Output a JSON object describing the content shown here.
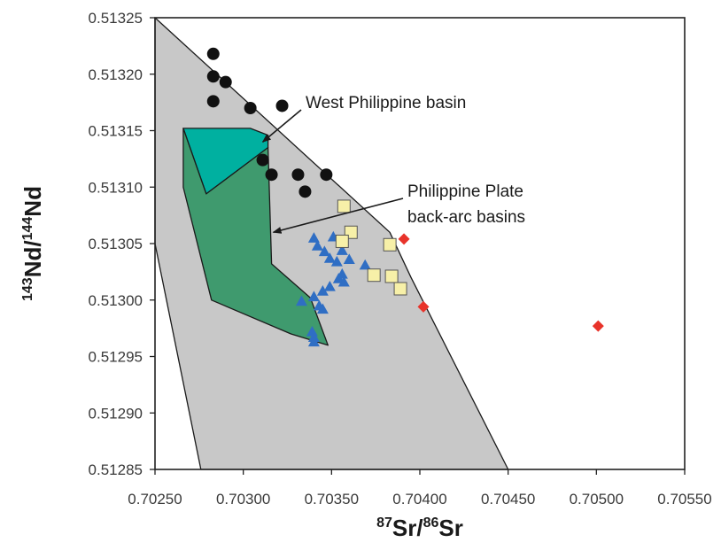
{
  "chart_data": {
    "type": "scatter",
    "xlabel": {
      "sup1": "87",
      "base1": "Sr/",
      "sup2": "86",
      "base2": "Sr"
    },
    "ylabel": {
      "sup1": "143",
      "base1": "Nd/",
      "sup2": "144",
      "base2": "Nd"
    },
    "xlim": [
      0.7025,
      0.7055
    ],
    "ylim": [
      0.51285,
      0.51325
    ],
    "x_ticks": [
      "0.70250",
      "0.70300",
      "0.70350",
      "0.70400",
      "0.70450",
      "0.70500",
      "0.70550"
    ],
    "y_ticks": [
      "0.51285",
      "0.51290",
      "0.51295",
      "0.51300",
      "0.51305",
      "0.51310",
      "0.51315",
      "0.51320",
      "0.51325"
    ],
    "grid": false,
    "legend": "none",
    "colors": {
      "field": "#c8c8c8",
      "west_philippine": "#00b0a0",
      "back_arc": "#3f9a6e",
      "circles": "#111111",
      "triangles": "#2f6ec4",
      "squares": "#f7f0a8",
      "diamonds": "#e8332a"
    },
    "regions": [
      {
        "id": "field",
        "points": [
          [
            0.7025,
            0.51325
          ],
          [
            0.70383,
            0.51306
          ],
          [
            0.70395,
            0.51302
          ],
          [
            0.7045,
            0.51285
          ],
          [
            0.70276,
            0.51285
          ],
          [
            0.7025,
            0.51305
          ]
        ]
      },
      {
        "id": "west-philippine",
        "points": [
          [
            0.70266,
            0.513152
          ],
          [
            0.70304,
            0.513152
          ],
          [
            0.70314,
            0.513146
          ],
          [
            0.70314,
            0.513135
          ],
          [
            0.70279,
            0.513094
          ]
        ]
      },
      {
        "id": "back-arc",
        "points": [
          [
            0.70266,
            0.513152
          ],
          [
            0.70279,
            0.513094
          ],
          [
            0.70314,
            0.513135
          ],
          [
            0.70316,
            0.513032
          ],
          [
            0.70338,
            0.513002
          ],
          [
            0.70348,
            0.51296
          ],
          [
            0.70327,
            0.51297
          ],
          [
            0.70282,
            0.513
          ],
          [
            0.70266,
            0.5131
          ]
        ]
      }
    ],
    "series": [
      {
        "marker": "circle",
        "points": [
          [
            0.70283,
            0.513218
          ],
          [
            0.70283,
            0.513198
          ],
          [
            0.7029,
            0.513193
          ],
          [
            0.70283,
            0.513176
          ],
          [
            0.70304,
            0.51317
          ],
          [
            0.70322,
            0.513172
          ],
          [
            0.70311,
            0.513124
          ],
          [
            0.70316,
            0.513111
          ],
          [
            0.70331,
            0.513111
          ],
          [
            0.70335,
            0.513096
          ],
          [
            0.70347,
            0.513111
          ]
        ]
      },
      {
        "marker": "triangle",
        "points": [
          [
            0.7034,
            0.513055
          ],
          [
            0.70351,
            0.513056
          ],
          [
            0.70342,
            0.513048
          ],
          [
            0.70346,
            0.513043
          ],
          [
            0.70356,
            0.513044
          ],
          [
            0.70349,
            0.513037
          ],
          [
            0.70353,
            0.513034
          ],
          [
            0.7036,
            0.513036
          ],
          [
            0.70369,
            0.513031
          ],
          [
            0.70356,
            0.513023
          ],
          [
            0.70349,
            0.513012
          ],
          [
            0.70345,
            0.513008
          ],
          [
            0.70354,
            0.513019
          ],
          [
            0.70357,
            0.513016
          ],
          [
            0.7034,
            0.513003
          ],
          [
            0.70333,
            0.512999
          ],
          [
            0.70343,
            0.512995
          ],
          [
            0.70345,
            0.512992
          ],
          [
            0.70339,
            0.512972
          ],
          [
            0.7034,
            0.512967
          ],
          [
            0.7034,
            0.512963
          ]
        ]
      },
      {
        "marker": "square",
        "points": [
          [
            0.70357,
            0.513083
          ],
          [
            0.70361,
            0.51306
          ],
          [
            0.70356,
            0.513052
          ],
          [
            0.70383,
            0.513049
          ],
          [
            0.70374,
            0.513022
          ],
          [
            0.70384,
            0.513021
          ],
          [
            0.70389,
            0.51301
          ]
        ]
      },
      {
        "marker": "diamond",
        "points": [
          [
            0.70391,
            0.513054
          ],
          [
            0.70402,
            0.512994
          ],
          [
            0.70501,
            0.512977
          ]
        ]
      }
    ],
    "annotations": [
      {
        "text": "West Philippine basin",
        "target": [
          0.70311,
          0.51314
        ]
      },
      {
        "text": "Philippine Plate",
        "text2": "back-arc basins",
        "target": [
          0.70317,
          0.51306
        ]
      }
    ]
  }
}
